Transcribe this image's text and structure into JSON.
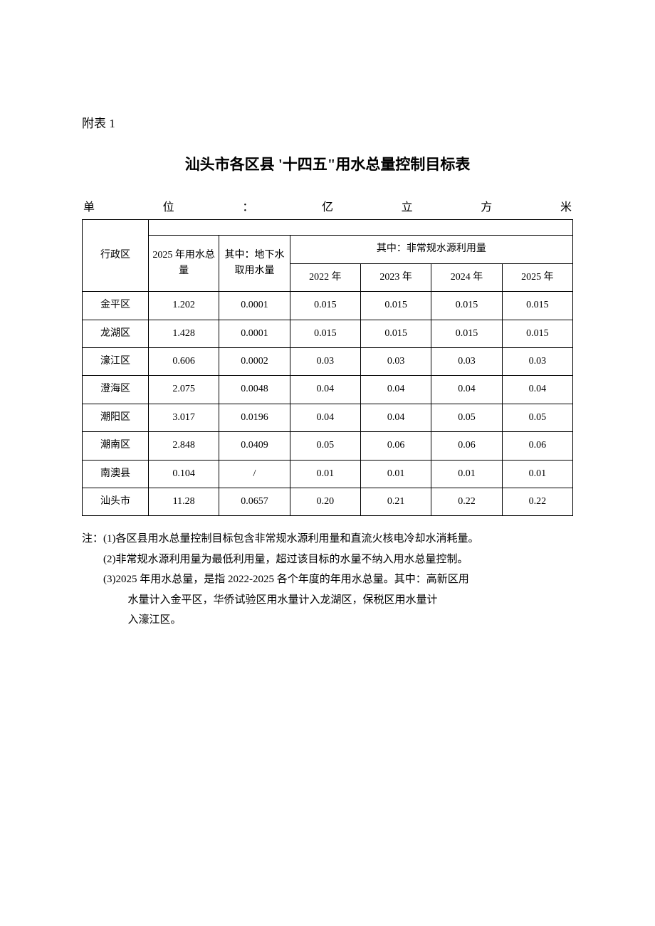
{
  "appendix_label": "附表 1",
  "title": "汕头市各区县 '十四五\"用水总量控制目标表",
  "unit_segments": [
    "单",
    "位",
    "：",
    "亿",
    "立",
    "方",
    "米"
  ],
  "table": {
    "headers": {
      "region": "行政区",
      "total_2025": "2025 年用水总量",
      "groundwater": "其中：地下水取用水量",
      "nonconventional": "其中：非常规水源利用量",
      "year_2022": "2022 年",
      "year_2023": "2023 年",
      "year_2024": "2024 年",
      "year_2025": "2025 年"
    },
    "rows": [
      {
        "region": "金平区",
        "total": "1.202",
        "gw": "0.0001",
        "y2022": "0.015",
        "y2023": "0.015",
        "y2024": "0.015",
        "y2025": "0.015"
      },
      {
        "region": "龙湖区",
        "total": "1.428",
        "gw": "0.0001",
        "y2022": "0.015",
        "y2023": "0.015",
        "y2024": "0.015",
        "y2025": "0.015"
      },
      {
        "region": "濠江区",
        "total": "0.606",
        "gw": "0.0002",
        "y2022": "0.03",
        "y2023": "0.03",
        "y2024": "0.03",
        "y2025": "0.03"
      },
      {
        "region": "澄海区",
        "total": "2.075",
        "gw": "0.0048",
        "y2022": "0.04",
        "y2023": "0.04",
        "y2024": "0.04",
        "y2025": "0.04"
      },
      {
        "region": "潮阳区",
        "total": "3.017",
        "gw": "0.0196",
        "y2022": "0.04",
        "y2023": "0.04",
        "y2024": "0.05",
        "y2025": "0.05"
      },
      {
        "region": "潮南区",
        "total": "2.848",
        "gw": "0.0409",
        "y2022": "0.05",
        "y2023": "0.06",
        "y2024": "0.06",
        "y2025": "0.06"
      },
      {
        "region": "南澳县",
        "total": "0.104",
        "gw": "/",
        "y2022": "0.01",
        "y2023": "0.01",
        "y2024": "0.01",
        "y2025": "0.01"
      },
      {
        "region": "汕头市",
        "total": "11.28",
        "gw": "0.0657",
        "y2022": "0.20",
        "y2023": "0.21",
        "y2024": "0.22",
        "y2025": "0.22"
      }
    ]
  },
  "notes": {
    "n1": "注：(1)各区县用水总量控制目标包含非常规水源利用量和直流火核电冷却水消耗量。",
    "n2": "(2)非常规水源利用量为最低利用量，超过该目标的水量不纳入用水总量控制。",
    "n3": "(3)2025 年用水总量，是指 2022-2025 各个年度的年用水总量。其中：高新区用",
    "n3b": "水量计入金平区，华侨试验区用水量计入龙湖区，保税区用水量计",
    "n3c": "入濠江区。"
  },
  "colors": {
    "text": "#000000",
    "background": "#ffffff",
    "border": "#000000"
  }
}
